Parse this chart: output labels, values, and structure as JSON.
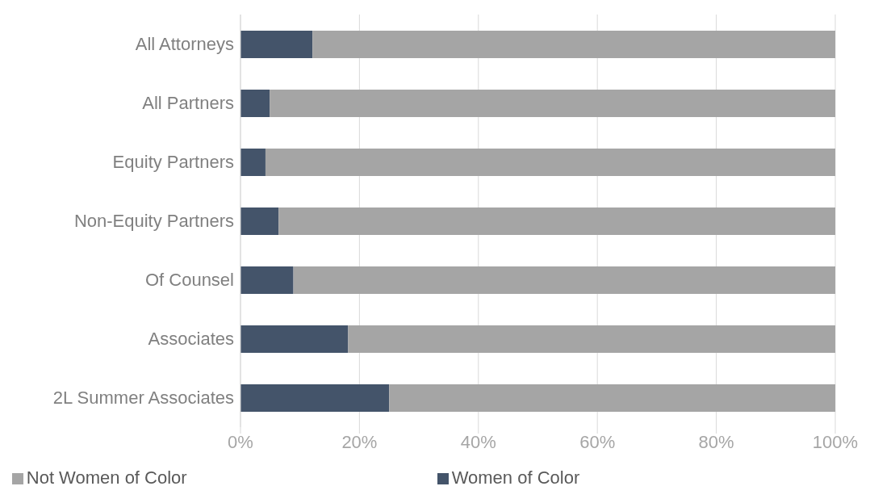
{
  "chart_data": {
    "type": "bar",
    "orientation": "horizontal",
    "stacked": true,
    "categories": [
      "All Attorneys",
      "All Partners",
      "Equity Partners",
      "Non-Equity Partners",
      "Of Counsel",
      "Associates",
      "2L Summer Associates"
    ],
    "series": [
      {
        "name": "Women of Color",
        "color": "#44546a",
        "values": [
          12.1,
          4.9,
          4.2,
          6.4,
          8.9,
          18.1,
          25.0
        ]
      },
      {
        "name": "Not Women of Color",
        "color": "#a5a5a5",
        "values": [
          87.9,
          95.1,
          95.8,
          93.6,
          91.1,
          81.9,
          75.0
        ]
      }
    ],
    "xlim": [
      0,
      100
    ],
    "xticks": [
      {
        "value": 0,
        "label": "0%"
      },
      {
        "value": 20,
        "label": "20%"
      },
      {
        "value": 40,
        "label": "40%"
      },
      {
        "value": 60,
        "label": "60%"
      },
      {
        "value": 80,
        "label": "80%"
      },
      {
        "value": 100,
        "label": "100%"
      }
    ],
    "grid": "x",
    "legend": "bottom"
  }
}
